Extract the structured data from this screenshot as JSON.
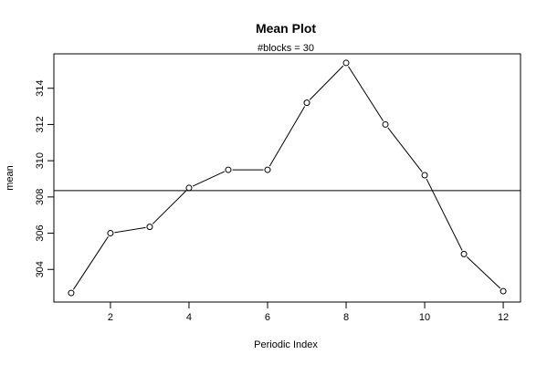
{
  "chart_data": {
    "type": "line",
    "title": "Mean Plot",
    "subtitle": "#blocks =  30",
    "xlabel": "Periodic Index",
    "ylabel": "mean",
    "x": [
      1,
      2,
      3,
      4,
      5,
      6,
      7,
      8,
      9,
      10,
      11,
      12
    ],
    "series": [
      {
        "values": [
          302.7,
          306.0,
          306.35,
          308.5,
          309.5,
          309.5,
          313.2,
          315.4,
          312.0,
          309.2,
          304.85,
          302.8
        ]
      }
    ],
    "reference_line": 308.35,
    "x_ticks": [
      2,
      4,
      6,
      8,
      10,
      12
    ],
    "y_ticks": [
      304,
      306,
      308,
      310,
      312,
      314
    ],
    "xlim": [
      0.56,
      12.44
    ],
    "ylim": [
      302.2,
      315.9
    ],
    "grid": false,
    "legend": "none",
    "marker": "open-circle",
    "line_color": "#000000"
  }
}
